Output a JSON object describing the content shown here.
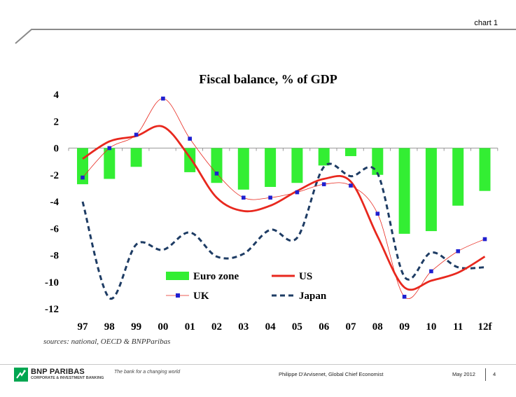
{
  "slide": {
    "chart_number": "chart 1",
    "footer": {
      "brand": "BNP PARIBAS",
      "brand_sub": "CORPORATE & INVESTMENT BANKING",
      "tagline": "The bank for a changing world",
      "author": "Philippe D'Arvisenet, Global Chief Economist",
      "date": "May 2012",
      "page": "4"
    },
    "colors": {
      "eurozone": "#33ee33",
      "us": "#e8281e",
      "uk": "#2020d0",
      "japan": "#1e3c64"
    }
  },
  "chart_data": {
    "type": "bar",
    "title": "Fiscal balance, % of GDP",
    "categories": [
      "97",
      "98",
      "99",
      "00",
      "01",
      "02",
      "03",
      "04",
      "05",
      "06",
      "07",
      "08",
      "09",
      "10",
      "11",
      "12f"
    ],
    "ylim": [
      -12,
      4
    ],
    "yticks": [
      "4",
      "2",
      "0",
      "-2",
      "-4",
      "-6",
      "-8",
      "-10",
      "-12"
    ],
    "source": "sources: national, OECD & BNPParibas",
    "series": [
      {
        "name": "Euro zone",
        "type": "bar",
        "values": [
          -2.7,
          -2.3,
          -1.4,
          0,
          -1.8,
          -2.6,
          -3.1,
          -2.9,
          -2.6,
          -1.3,
          -0.6,
          -2.0,
          -6.4,
          -6.2,
          -4.3,
          -3.2
        ]
      },
      {
        "name": "US",
        "type": "line",
        "values": [
          -0.8,
          0.5,
          0.9,
          1.6,
          -0.7,
          -3.7,
          -4.7,
          -4.3,
          -3.2,
          -2.3,
          -2.5,
          -6.6,
          -10.4,
          -9.9,
          -9.3,
          -8.1
        ]
      },
      {
        "name": "UK",
        "type": "line-markers",
        "values": [
          -2.2,
          0.0,
          1.0,
          3.7,
          0.7,
          -1.9,
          -3.7,
          -3.7,
          -3.3,
          -2.7,
          -2.8,
          -4.9,
          -11.1,
          -9.2,
          -7.7,
          -6.8
        ]
      },
      {
        "name": "Japan",
        "type": "dashed",
        "values": [
          -4.0,
          -11.2,
          -7.2,
          -7.6,
          -6.3,
          -8.1,
          -7.9,
          -6.1,
          -6.7,
          -1.4,
          -2.1,
          -1.9,
          -9.6,
          -7.8,
          -8.9,
          -8.9
        ]
      }
    ]
  }
}
